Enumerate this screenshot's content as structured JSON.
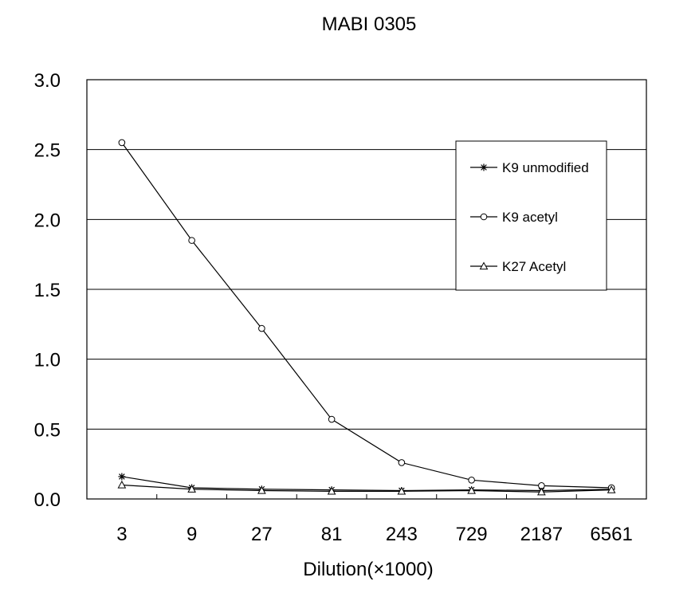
{
  "chart_data": {
    "type": "line",
    "title": "MABI 0305",
    "xlabel": "Dilution(×1000)",
    "ylabel": "",
    "categories": [
      "3",
      "9",
      "27",
      "81",
      "243",
      "729",
      "2187",
      "6561"
    ],
    "ylim": [
      0,
      3.0
    ],
    "yticks": [
      "0.0",
      "0.5",
      "1.0",
      "1.5",
      "2.0",
      "2.5",
      "3.0"
    ],
    "grid": true,
    "legend_position": "top-right",
    "series": [
      {
        "name": "K9 unmodified",
        "marker": "asterisk",
        "values": [
          0.16,
          0.08,
          0.07,
          0.065,
          0.06,
          0.065,
          0.06,
          0.07
        ]
      },
      {
        "name": "K9 acetyl",
        "marker": "circle",
        "values": [
          2.55,
          1.85,
          1.22,
          0.57,
          0.26,
          0.135,
          0.095,
          0.08
        ]
      },
      {
        "name": "K27 Acetyl",
        "marker": "triangle",
        "values": [
          0.1,
          0.07,
          0.06,
          0.055,
          0.055,
          0.06,
          0.05,
          0.065
        ]
      }
    ]
  }
}
